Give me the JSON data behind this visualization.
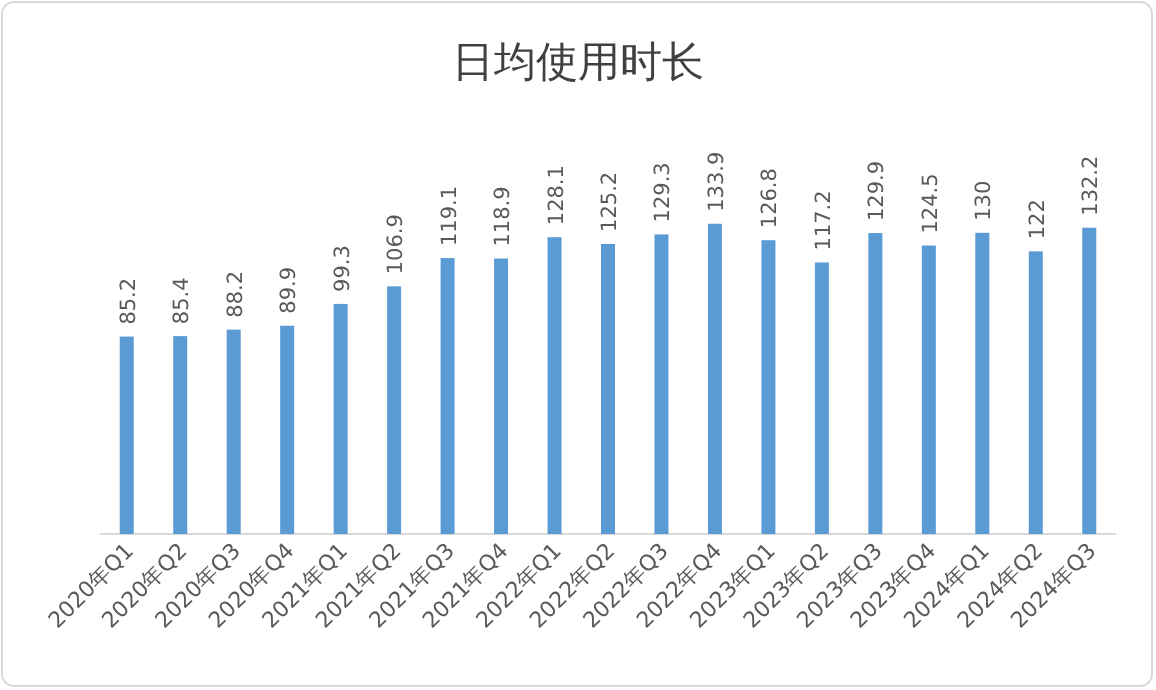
{
  "chart_data": {
    "type": "bar",
    "title": "日均使用时长",
    "categories": [
      "2020年Q1",
      "2020年Q2",
      "2020年Q3",
      "2020年Q4",
      "2021年Q1",
      "2021年Q2",
      "2021年Q3",
      "2021年Q4",
      "2022年Q1",
      "2022年Q2",
      "2022年Q3",
      "2022年Q4",
      "2023年Q1",
      "2023年Q2",
      "2023年Q3",
      "2023年Q4",
      "2024年Q1",
      "2024年Q2",
      "2024年Q3"
    ],
    "values": [
      85.2,
      85.4,
      88.2,
      89.9,
      99.3,
      106.9,
      119.1,
      118.9,
      128.1,
      125.2,
      129.3,
      133.9,
      126.8,
      117.2,
      129.9,
      124.5,
      130,
      122,
      132.2
    ],
    "color": "#5b9bd5",
    "data_labels": true
  }
}
